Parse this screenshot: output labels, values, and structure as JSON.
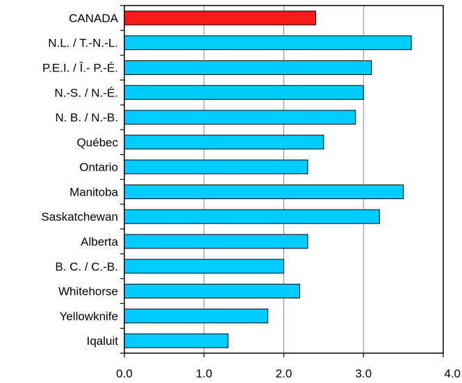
{
  "chart_data": {
    "type": "bar",
    "orientation": "horizontal",
    "categories": [
      "CANADA",
      "N.L. / T.-N.-L.",
      "P.E.I. / Î.- P.-É.",
      "N.-S. / N.-É.",
      "N. B. / N.-B.",
      "Québec",
      "Ontario",
      "Manitoba",
      "Saskatchewan",
      "Alberta",
      "B. C. / C.-B.",
      "Whitehorse",
      "Yellowknife",
      "Iqaluit"
    ],
    "values": [
      2.4,
      3.6,
      3.1,
      3.0,
      2.9,
      2.5,
      2.3,
      3.5,
      3.2,
      2.3,
      2.0,
      2.2,
      1.8,
      1.3
    ],
    "highlight_category": "CANADA",
    "colors": {
      "highlight": "#ff1a1a",
      "bar": "#00ccff",
      "bar_edge": "#000000",
      "grid": "#888888"
    },
    "xlim": [
      0,
      4
    ],
    "xticks": [
      0,
      1,
      2,
      3,
      4
    ],
    "xtick_labels": [
      "0.0",
      "1.0",
      "2.0",
      "3.0",
      "4.0"
    ],
    "grid": "vertical",
    "title": "",
    "xlabel": "",
    "ylabel": ""
  }
}
